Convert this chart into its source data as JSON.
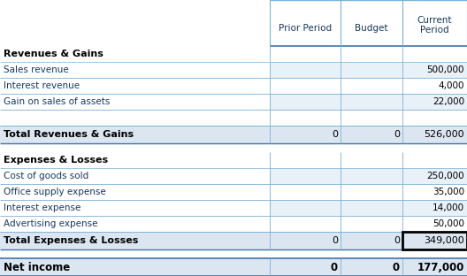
{
  "header_labels": [
    "Prior Period",
    "Budget",
    "Current\nPeriod"
  ],
  "section1_header": "Revenues & Gains",
  "section1_items": [
    [
      "Sales revenue",
      "",
      "",
      "500,000"
    ],
    [
      "Interest revenue",
      "",
      "",
      "4,000"
    ],
    [
      "Gain on sales of assets",
      "",
      "",
      "22,000"
    ],
    [
      "",
      "",
      "",
      ""
    ]
  ],
  "section1_total_label": "Total Revenues & Gains",
  "section1_total_values": [
    "0",
    "0",
    "526,000"
  ],
  "section2_header": "Expenses & Losses",
  "section2_items": [
    [
      "Cost of goods sold",
      "",
      "",
      "250,000"
    ],
    [
      "Office supply expense",
      "",
      "",
      "35,000"
    ],
    [
      "Interest expense",
      "",
      "",
      "14,000"
    ],
    [
      "Advertising expense",
      "",
      "",
      "50,000"
    ]
  ],
  "section2_total_label": "Total Expenses & Losses",
  "section2_total_values": [
    "0",
    "0",
    "349,000"
  ],
  "net_income_label": "Net income",
  "net_income_values": [
    "0",
    "0",
    "177,000"
  ],
  "bg_white": "#ffffff",
  "bg_light_blue": "#dce6f1",
  "bg_row_alt": "#e8f0f8",
  "border_color": "#7ab0d8",
  "border_dark": "#4472a8",
  "header_text_color": "#17375e",
  "item_text_color": "#17375e",
  "label_text_color": "#000000",
  "total_text_color": "#000000",
  "net_text_color": "#000000"
}
